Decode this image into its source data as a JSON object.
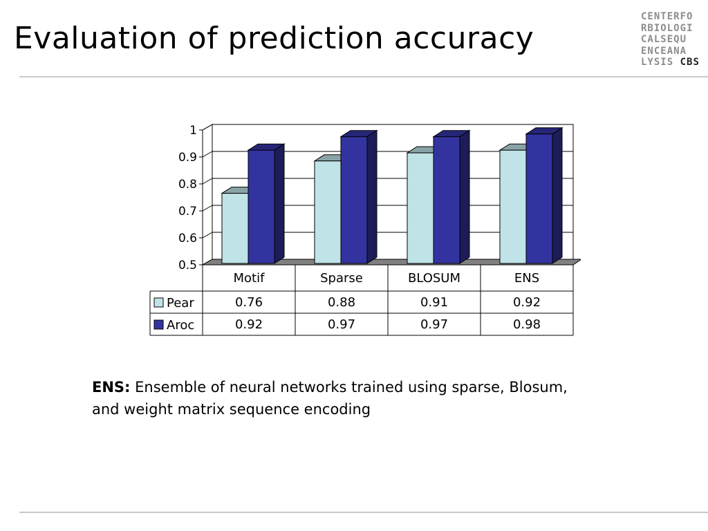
{
  "slide": {
    "title": "Evaluation of prediction accuracy",
    "logo_rows": [
      "CENTERFO",
      "RBIOLOGI",
      "CALSEQU",
      "ENCEANA",
      "LYSIS"
    ],
    "logo_mark": "CBS",
    "note_label": "ENS:",
    "note_text": "Ensemble of neural networks trained using sparse, Blosum, and weight matrix sequence encoding"
  },
  "chart_data": {
    "type": "bar",
    "style": "3d-clustered-with-data-table",
    "categories": [
      "Motif",
      "Sparse",
      "BLOSUM",
      "ENS"
    ],
    "series": [
      {
        "name": "Pear",
        "values": [
          0.76,
          0.88,
          0.91,
          0.92
        ],
        "value_labels": [
          "0.76",
          "0.88",
          "0.91",
          "0.92"
        ],
        "color": "#bfe3e6"
      },
      {
        "name": "Aroc",
        "values": [
          0.92,
          0.97,
          0.97,
          0.98
        ],
        "value_labels": [
          "0.92",
          "0.97",
          "0.97",
          "0.98"
        ],
        "color": "#3333a0"
      }
    ],
    "ylim": [
      0.5,
      1
    ],
    "yticks": [
      0.5,
      0.6,
      0.7,
      0.8,
      0.9,
      1
    ],
    "ytick_labels": [
      "0.5",
      "0.6",
      "0.7",
      "0.8",
      "0.9",
      "1"
    ],
    "grid": true,
    "legend": "data-table-left"
  }
}
